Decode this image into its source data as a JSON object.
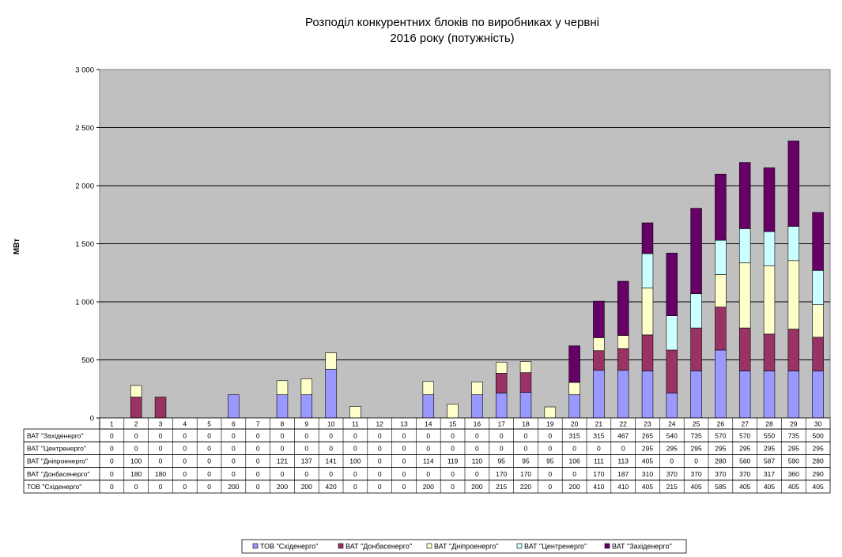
{
  "chart_data": {
    "type": "bar",
    "stacked": true,
    "title_line1": "Розподіл конкурентних  блоків по виробниках у червні",
    "title_line2": "2016 року  (потужність)",
    "ylabel": "МВт",
    "ylim": [
      0,
      3000
    ],
    "yticks": [
      0,
      500,
      1000,
      1500,
      2000,
      2500,
      3000
    ],
    "ytick_labels": [
      "0",
      "500",
      "1 000",
      "1 500",
      "2 000",
      "2 500",
      "3 000"
    ],
    "grid": true,
    "legend_position": "bottom",
    "categories": [
      "1",
      "2",
      "3",
      "4",
      "5",
      "6",
      "7",
      "8",
      "9",
      "10",
      "11",
      "12",
      "13",
      "14",
      "15",
      "16",
      "17",
      "18",
      "19",
      "20",
      "21",
      "22",
      "23",
      "24",
      "25",
      "26",
      "27",
      "28",
      "29",
      "30"
    ],
    "series": [
      {
        "name": "ТОВ \"Східенерго\"",
        "color": "#9999ff",
        "values": [
          0,
          0,
          0,
          0,
          0,
          200,
          0,
          200,
          200,
          420,
          0,
          0,
          0,
          200,
          0,
          200,
          215,
          220,
          0,
          200,
          410,
          410,
          405,
          215,
          405,
          585,
          405,
          405,
          405,
          405
        ]
      },
      {
        "name": "ВАТ \"Донбасенерго\"",
        "color": "#993366",
        "values": [
          0,
          180,
          180,
          0,
          0,
          0,
          0,
          0,
          0,
          0,
          0,
          0,
          0,
          0,
          0,
          0,
          170,
          170,
          0,
          0,
          170,
          187,
          310,
          370,
          370,
          370,
          370,
          317,
          360,
          290
        ]
      },
      {
        "name": "ВАТ \"Дніпроенерго\"",
        "color": "#ffffcc",
        "values": [
          0,
          100,
          0,
          0,
          0,
          0,
          0,
          121,
          137,
          141,
          100,
          0,
          0,
          114,
          119,
          110,
          95,
          95,
          95,
          106,
          111,
          113,
          405,
          0,
          0,
          280,
          560,
          587,
          590,
          280
        ]
      },
      {
        "name": "ВАТ \"Центренерго\"",
        "color": "#ccffff",
        "values": [
          0,
          0,
          0,
          0,
          0,
          0,
          0,
          0,
          0,
          0,
          0,
          0,
          0,
          0,
          0,
          0,
          0,
          0,
          0,
          0,
          0,
          0,
          295,
          295,
          295,
          295,
          295,
          295,
          295,
          295
        ]
      },
      {
        "name": "ВАТ \"Західенерго\"",
        "color": "#660066",
        "values": [
          0,
          0,
          0,
          0,
          0,
          0,
          0,
          0,
          0,
          0,
          0,
          0,
          0,
          0,
          0,
          0,
          0,
          0,
          0,
          315,
          315,
          467,
          265,
          540,
          735,
          570,
          570,
          550,
          735,
          500
        ]
      }
    ],
    "table_row_order": [
      4,
      3,
      2,
      1,
      0
    ],
    "plot_background": "#c0c0c0"
  }
}
